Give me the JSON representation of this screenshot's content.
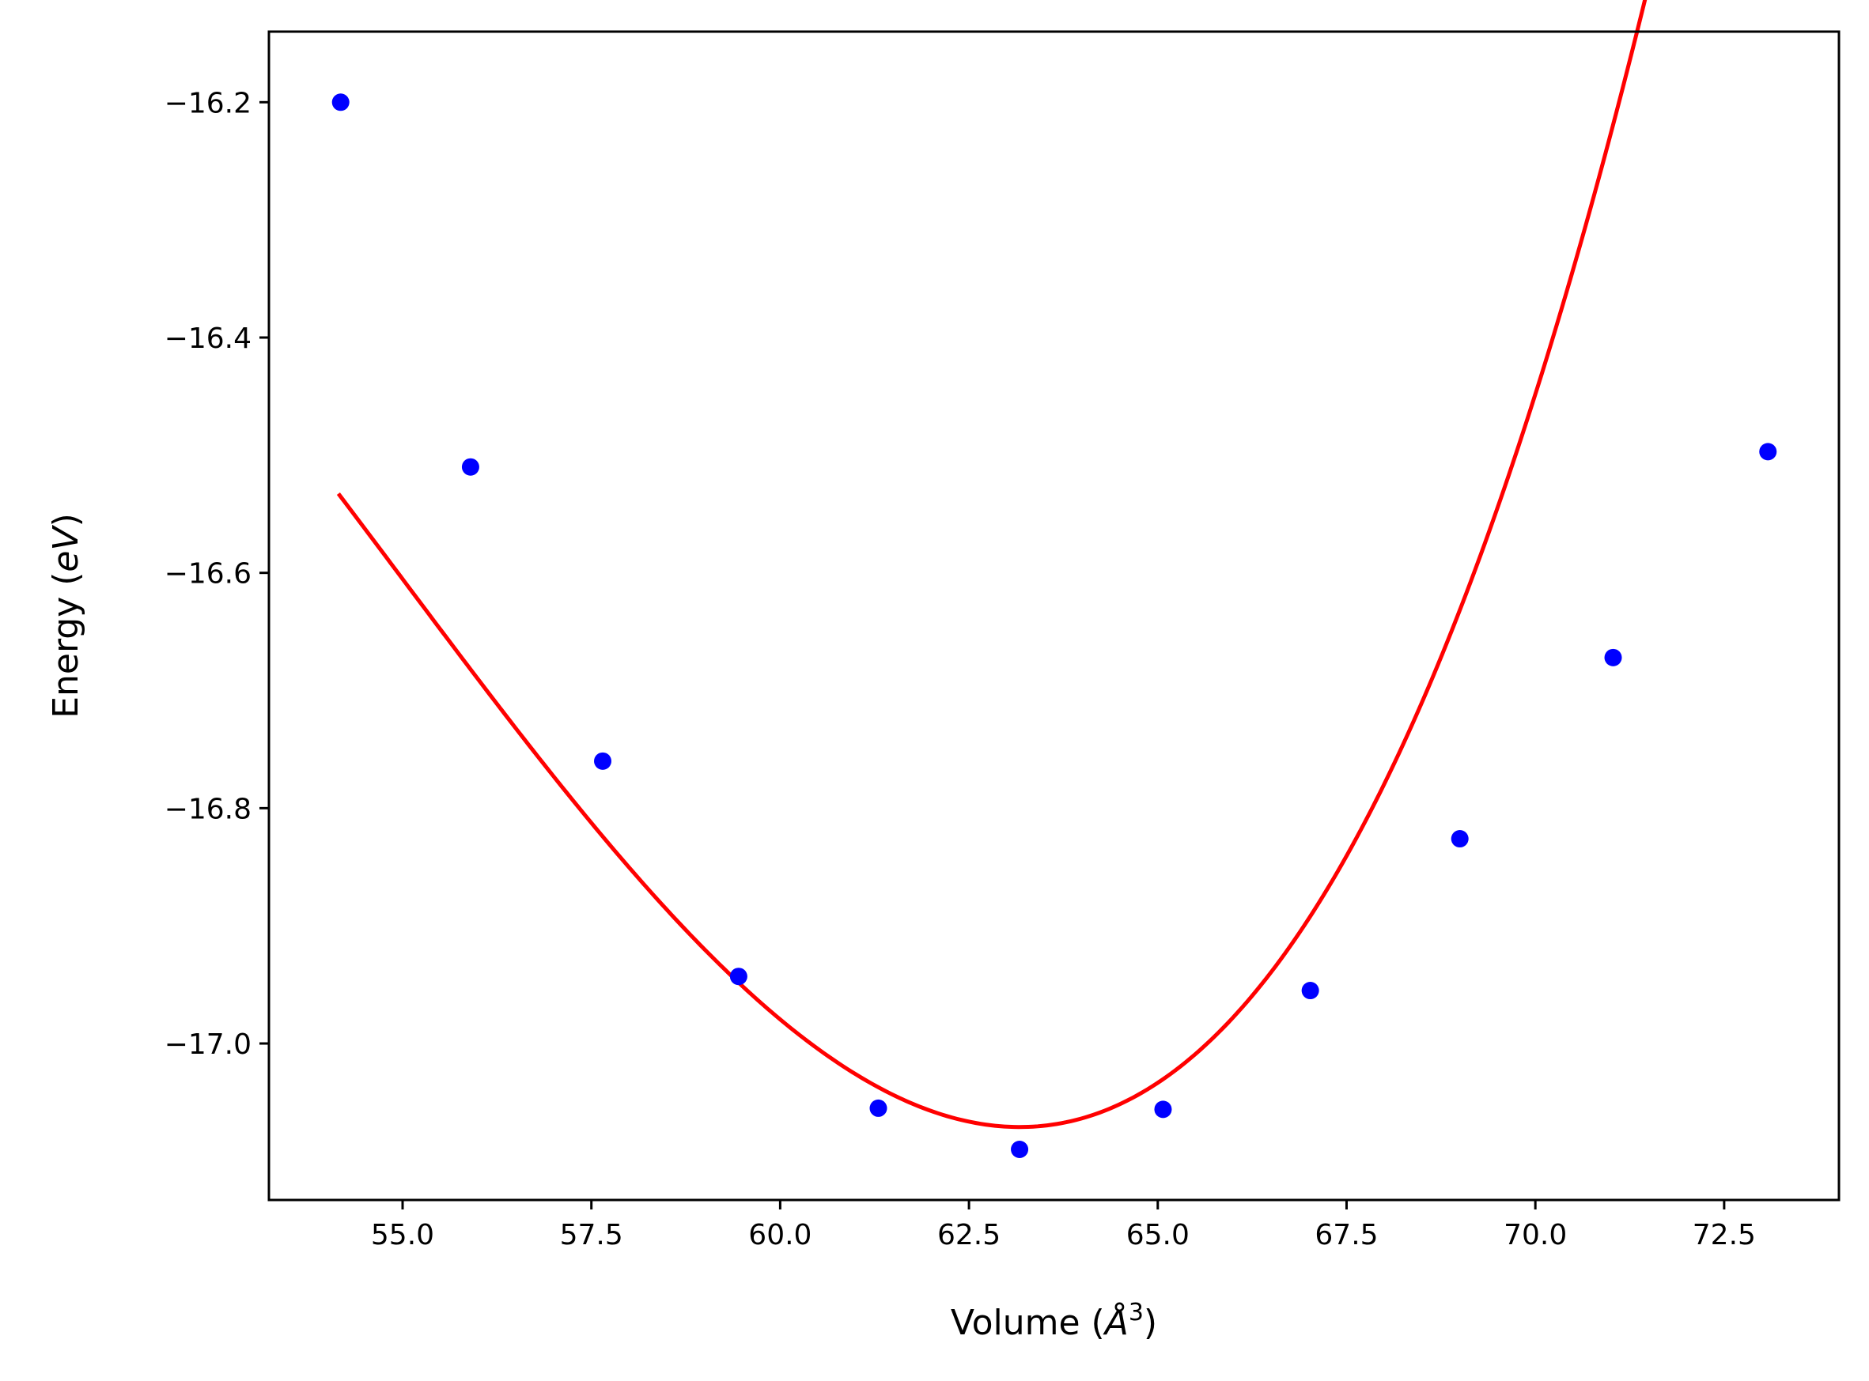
{
  "chart_data": {
    "type": "scatter",
    "xlabel": "Volume",
    "xlabel_unit": "Å",
    "xlabel_exponent": "3",
    "ylabel": "Energy",
    "ylabel_unit": "eV",
    "xlim": [
      53.23,
      74.02
    ],
    "ylim": [
      -17.133,
      -16.14
    ],
    "x_ticks": [
      55.0,
      57.5,
      60.0,
      62.5,
      65.0,
      67.5,
      70.0,
      72.5
    ],
    "x_tick_labels": [
      "55.0",
      "57.5",
      "60.0",
      "62.5",
      "65.0",
      "67.5",
      "70.0",
      "72.5"
    ],
    "y_ticks": [
      -16.2,
      -16.4,
      -16.6,
      -16.8,
      -17.0
    ],
    "y_tick_labels": [
      "−16.2",
      "−16.4",
      "−16.6",
      "−16.8",
      "−17.0"
    ],
    "grid": false,
    "series": [
      {
        "kind": "points",
        "color": "#0000ff",
        "x": [
          54.18,
          55.9,
          57.65,
          59.45,
          61.3,
          63.17,
          65.07,
          67.02,
          69.0,
          71.03,
          73.08
        ],
        "y": [
          -16.2,
          -16.51,
          -16.76,
          -16.943,
          -17.055,
          -17.09,
          -17.056,
          -16.955,
          -16.826,
          -16.672,
          -16.497
        ]
      },
      {
        "kind": "fit",
        "color": "#ff0000",
        "fit": {
          "x0": 63.17,
          "y0": -17.071,
          "a": 0.01045,
          "b": 0.000425,
          "x_from": 54.15,
          "x_to": 73.05
        }
      }
    ]
  }
}
